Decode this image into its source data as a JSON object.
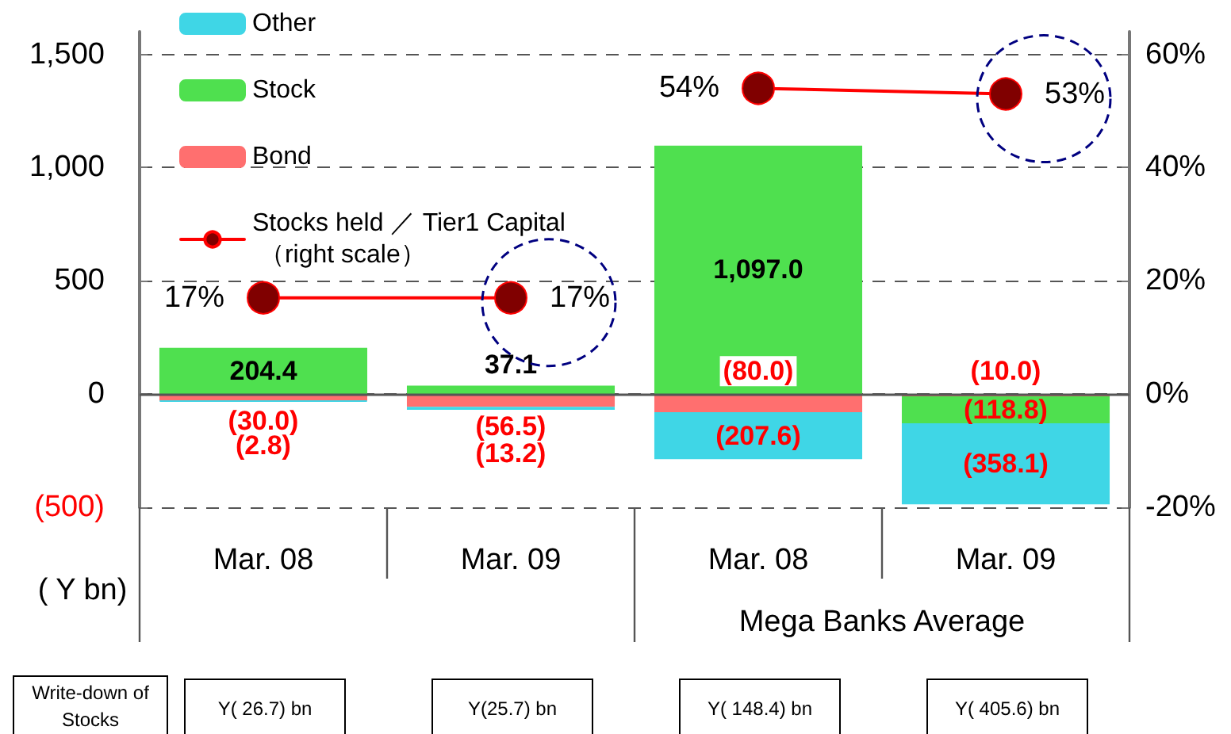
{
  "chart_data": {
    "type": "bar",
    "stacked": true,
    "categories": [
      "Mar. 08",
      "Mar. 09",
      "Mar. 08",
      "Mar. 09"
    ],
    "ylabel": "( Y bn)",
    "ylim": [
      -500,
      1600
    ],
    "yticks": [
      {
        "value": -500,
        "label": "(500)"
      },
      0,
      {
        "value": 500,
        "label": "500"
      },
      {
        "value": 1000,
        "label": "1,000"
      },
      {
        "value": 1500,
        "label": "1,500"
      }
    ],
    "y2lim": [
      -20,
      64
    ],
    "y2ticks": [
      {
        "value": -20,
        "label": "-20%"
      },
      {
        "value": 0,
        "label": "0%"
      },
      {
        "value": 20,
        "label": "20%"
      },
      {
        "value": 40,
        "label": "40%"
      },
      {
        "value": 60,
        "label": "60%"
      }
    ],
    "grid": "y",
    "legend": "top left",
    "series": [
      {
        "name": "Bond",
        "color": "#ff6f6f",
        "values": [
          -30.0,
          -56.5,
          -80.0,
          -10.0
        ],
        "value_labels": [
          "(30.0)",
          "(56.5)",
          "(80.0)",
          "(10.0)"
        ]
      },
      {
        "name": "Stock",
        "color": "#4fe04f",
        "values": [
          204.4,
          37.1,
          1097.0,
          -118.8
        ],
        "value_labels": [
          "204.4",
          "37.1",
          "1,097.0",
          "(118.8)"
        ]
      },
      {
        "name": "Other",
        "color": "#3fd6e6",
        "values": [
          -2.8,
          -13.2,
          -207.6,
          -358.1
        ],
        "value_labels": [
          "(2.8)",
          "(13.2)",
          "(207.6)",
          "(358.1)"
        ]
      },
      {
        "name": "Stocks held ／ Tier1 Capital （right scale）",
        "type": "line",
        "axis": "y2",
        "marker": "circle",
        "color": "#ff0000",
        "colors": [
          "#800000",
          "#800000",
          "#800000",
          "#800000"
        ],
        "values": [
          17,
          17,
          null,
          null
        ],
        "value_labels": [
          "17%",
          "17%",
          null,
          null
        ]
      },
      {
        "type": "line",
        "axis": "y2",
        "marker": "circle",
        "color": "#ff0000",
        "colors": [
          "#800000",
          "#800000",
          "#800000",
          "#800000"
        ],
        "values": [
          null,
          null,
          54,
          53
        ],
        "value_labels": [
          null,
          null,
          "54%",
          "53%"
        ]
      }
    ],
    "annotations": [
      "Mega Banks Average",
      "Write-down of Stocks",
      "Y( 26.7) bn",
      "Y(25.7) bn",
      "Y( 148.4) bn",
      "Y( 405.6) bn"
    ]
  }
}
